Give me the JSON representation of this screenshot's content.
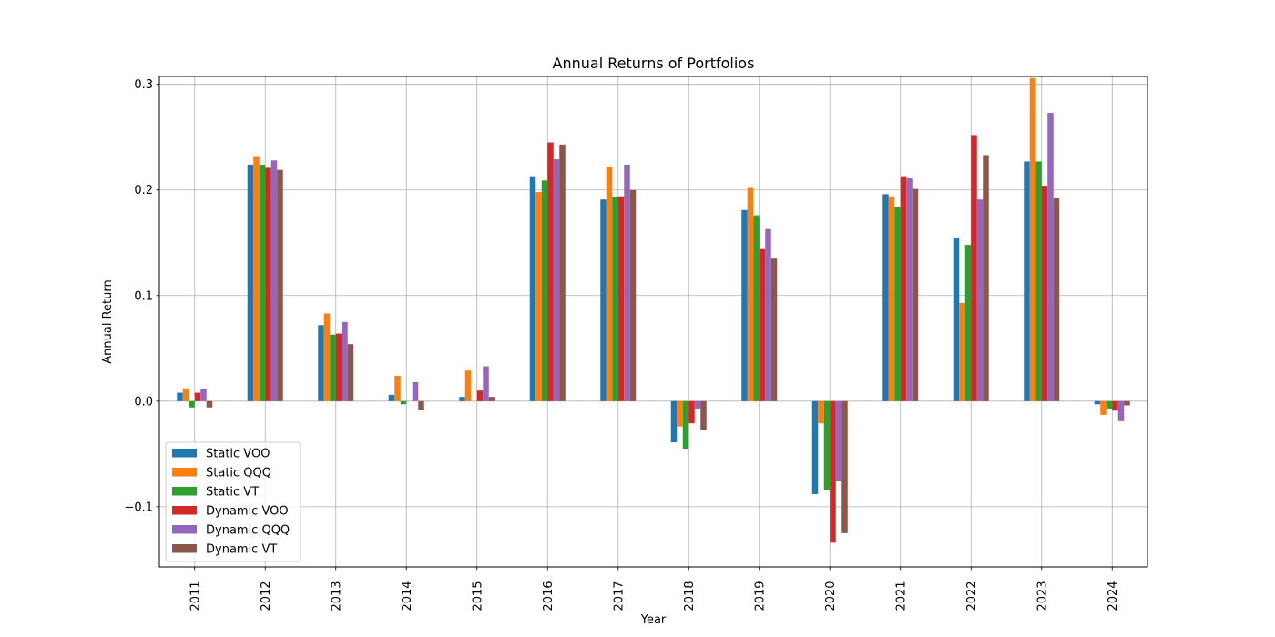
{
  "chart_data": {
    "type": "bar",
    "title": "Annual Returns of Portfolios",
    "xlabel": "Year",
    "ylabel": "Annual Return",
    "categories": [
      "2011",
      "2012",
      "2013",
      "2014",
      "2015",
      "2016",
      "2017",
      "2018",
      "2019",
      "2020",
      "2021",
      "2022",
      "2023",
      "2024"
    ],
    "ylim": [
      -0.157,
      0.3075
    ],
    "yticks": [
      -0.1,
      0.0,
      0.1,
      0.2,
      0.3
    ],
    "ytick_labels": [
      "−0.1",
      "0.0",
      "0.1",
      "0.2",
      "0.3"
    ],
    "grid": true,
    "legend_position": "lower-left",
    "series": [
      {
        "name": "Static VOO",
        "color": "#1f77b4",
        "values": [
          0.008,
          0.224,
          0.072,
          0.006,
          0.004,
          0.213,
          0.191,
          -0.039,
          0.181,
          -0.088,
          0.196,
          0.155,
          0.227,
          -0.003
        ]
      },
      {
        "name": "Static QQQ",
        "color": "#ff7f0e",
        "values": [
          0.012,
          0.232,
          0.083,
          0.024,
          0.029,
          0.198,
          0.222,
          -0.024,
          0.202,
          -0.021,
          0.194,
          0.093,
          0.306,
          -0.013
        ]
      },
      {
        "name": "Static VT",
        "color": "#2ca02c",
        "values": [
          -0.006,
          0.224,
          0.063,
          -0.003,
          0.0,
          0.209,
          0.193,
          -0.045,
          0.176,
          -0.084,
          0.184,
          0.148,
          0.227,
          -0.007
        ]
      },
      {
        "name": "Dynamic VOO",
        "color": "#d62728",
        "values": [
          0.008,
          0.221,
          0.064,
          0.0,
          0.01,
          0.245,
          0.194,
          -0.021,
          0.144,
          -0.134,
          0.213,
          0.252,
          0.204,
          -0.009
        ]
      },
      {
        "name": "Dynamic QQQ",
        "color": "#9467bd",
        "values": [
          0.012,
          0.228,
          0.075,
          0.018,
          0.033,
          0.229,
          0.224,
          -0.007,
          0.163,
          -0.076,
          0.211,
          0.191,
          0.273,
          -0.019
        ]
      },
      {
        "name": "Dynamic VT",
        "color": "#8c564b",
        "values": [
          -0.006,
          0.219,
          0.054,
          -0.008,
          0.004,
          0.243,
          0.2,
          -0.027,
          0.135,
          -0.125,
          0.201,
          0.233,
          0.192,
          -0.004
        ]
      }
    ]
  }
}
